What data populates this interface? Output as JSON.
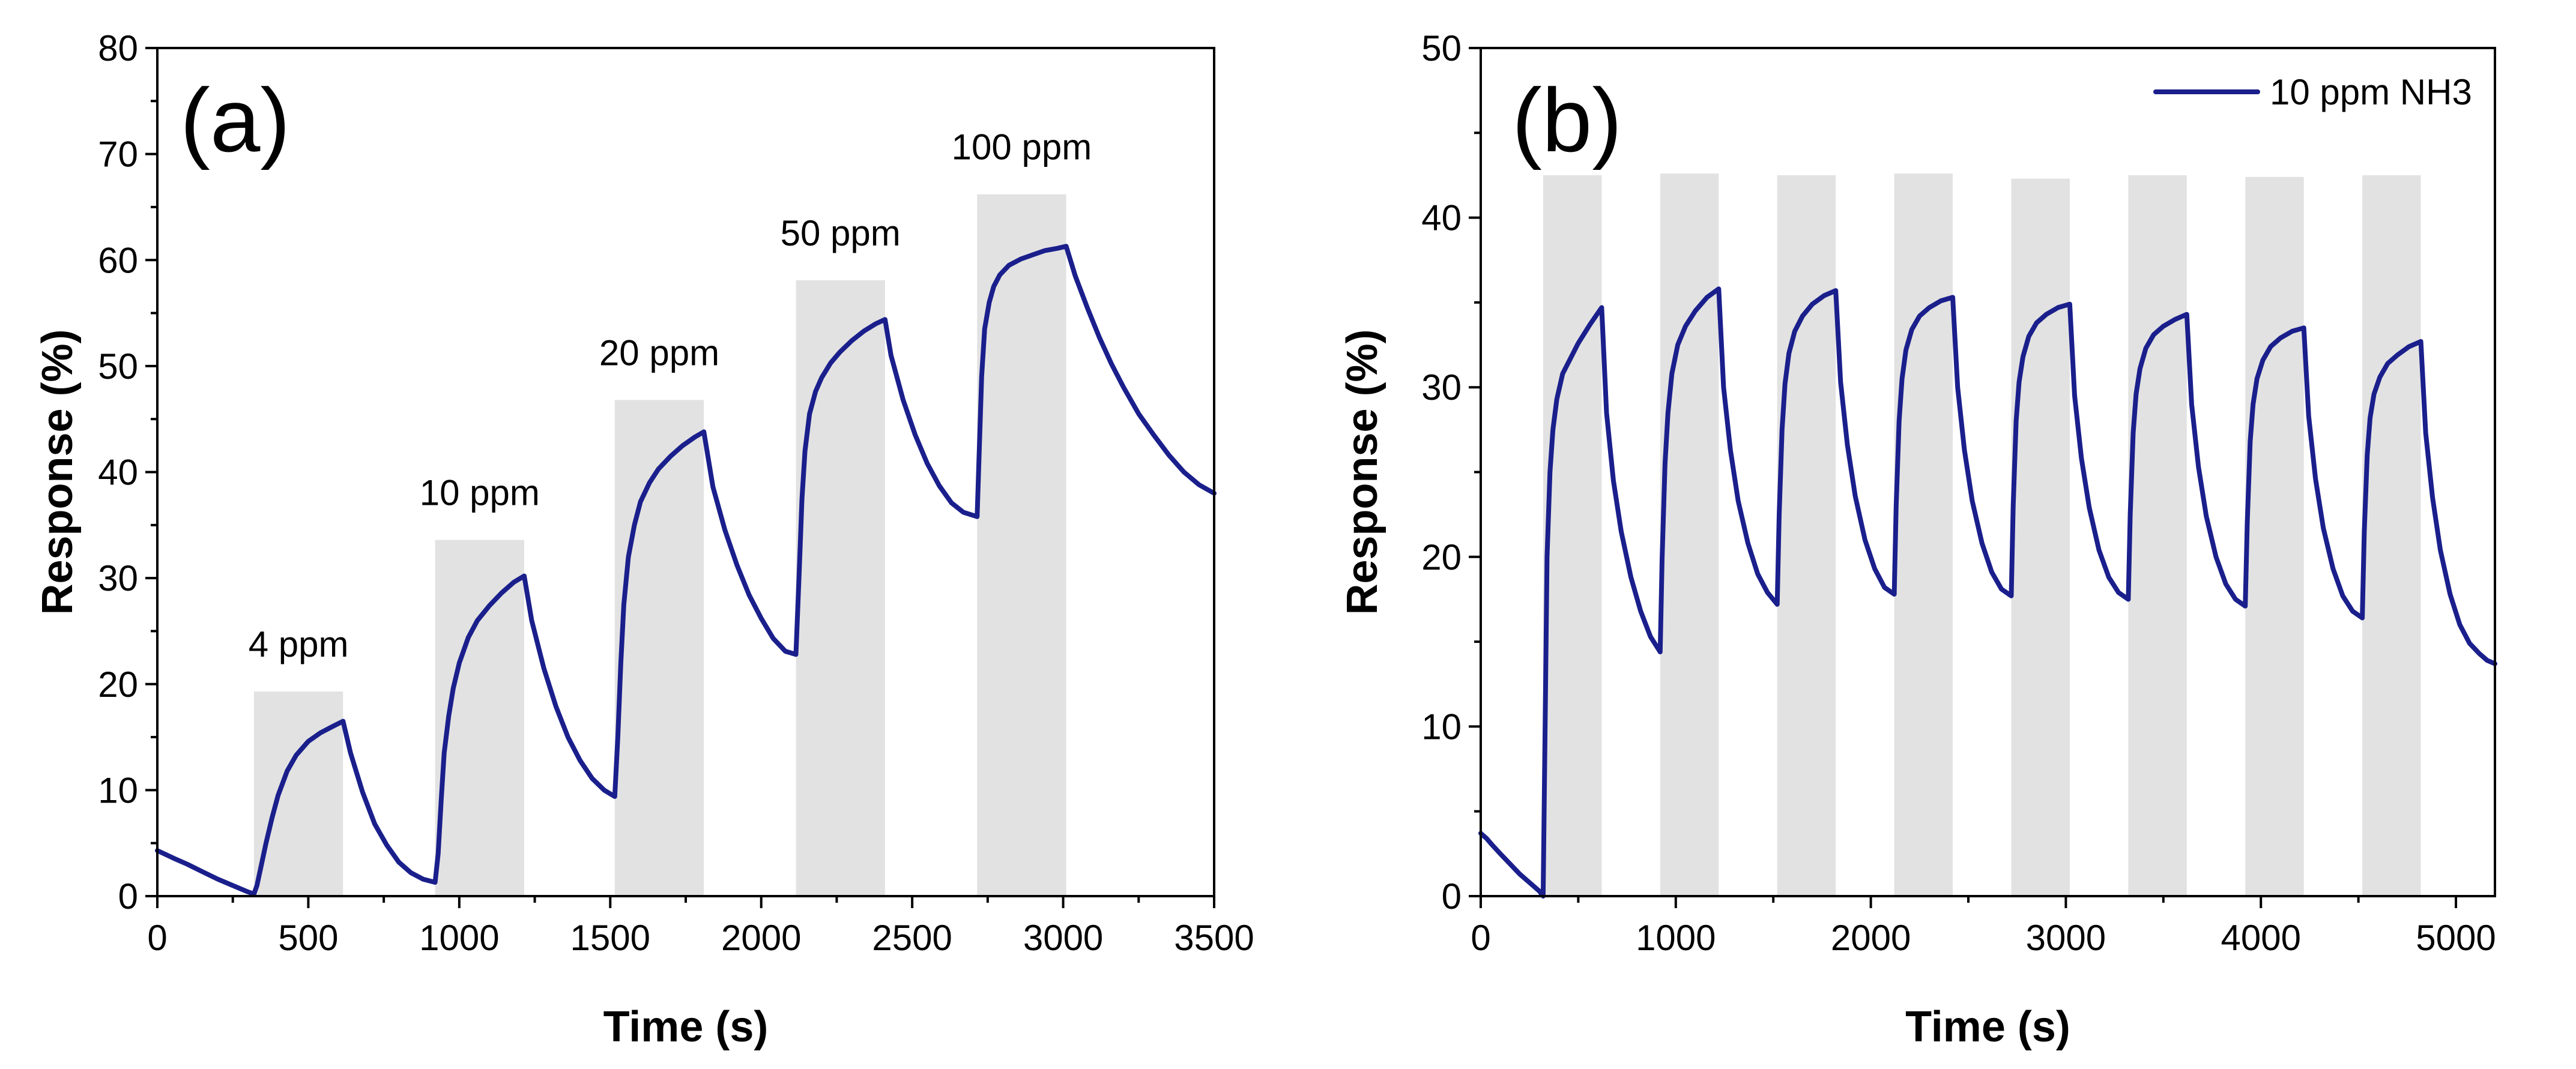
{
  "chart_data": [
    {
      "type": "line",
      "panel_label": "(a)",
      "xlabel": "Time (s)",
      "ylabel": "Response (%)",
      "xlim": [
        0,
        3500
      ],
      "ylim": [
        0,
        80
      ],
      "xticks": [
        0,
        500,
        1000,
        1500,
        2000,
        2500,
        3000,
        3500
      ],
      "yticks": [
        0,
        10,
        20,
        30,
        40,
        50,
        60,
        70,
        80
      ],
      "grid": false,
      "color": "#1a1f8c",
      "band_color": "#e2e2e2",
      "exposures": [
        {
          "label": "4 ppm",
          "start": 320,
          "end": 615,
          "height": 19.3
        },
        {
          "label": "10 ppm",
          "start": 920,
          "end": 1215,
          "height": 33.6
        },
        {
          "label": "20 ppm",
          "start": 1515,
          "end": 1810,
          "height": 46.8
        },
        {
          "label": "50 ppm",
          "start": 2115,
          "end": 2410,
          "height": 58.1
        },
        {
          "label": "100 ppm",
          "start": 2715,
          "end": 3010,
          "height": 66.2
        }
      ],
      "series": [
        {
          "name": "Response",
          "x": [
            0,
            30,
            60,
            100,
            150,
            200,
            250,
            300,
            320,
            330,
            345,
            360,
            380,
            400,
            430,
            460,
            500,
            540,
            580,
            615,
            640,
            680,
            720,
            760,
            800,
            840,
            880,
            920,
            930,
            940,
            950,
            965,
            980,
            1000,
            1030,
            1060,
            1100,
            1140,
            1180,
            1215,
            1240,
            1280,
            1320,
            1360,
            1400,
            1440,
            1480,
            1515,
            1525,
            1535,
            1545,
            1560,
            1580,
            1600,
            1630,
            1660,
            1700,
            1740,
            1780,
            1810,
            1840,
            1880,
            1920,
            1960,
            2000,
            2040,
            2080,
            2115,
            2125,
            2135,
            2145,
            2160,
            2180,
            2200,
            2230,
            2260,
            2300,
            2340,
            2380,
            2410,
            2430,
            2470,
            2510,
            2550,
            2590,
            2630,
            2670,
            2715,
            2722,
            2730,
            2740,
            2755,
            2770,
            2790,
            2820,
            2860,
            2900,
            2940,
            2980,
            3010,
            3040,
            3080,
            3120,
            3160,
            3200,
            3250,
            3300,
            3350,
            3400,
            3450,
            3500
          ],
          "y": [
            4.3,
            3.9,
            3.5,
            3.0,
            2.3,
            1.6,
            1.0,
            0.4,
            0.2,
            1.0,
            3.0,
            5.0,
            7.4,
            9.5,
            11.8,
            13.3,
            14.6,
            15.4,
            16.0,
            16.5,
            13.5,
            9.8,
            6.8,
            4.8,
            3.2,
            2.2,
            1.6,
            1.3,
            4.0,
            9.0,
            13.5,
            17.0,
            19.6,
            22.0,
            24.4,
            26.0,
            27.4,
            28.6,
            29.6,
            30.2,
            26.0,
            21.5,
            17.9,
            15.0,
            12.8,
            11.1,
            10.0,
            9.4,
            15.0,
            22.0,
            27.5,
            32.0,
            35.0,
            37.2,
            39.0,
            40.3,
            41.5,
            42.5,
            43.3,
            43.8,
            38.6,
            34.5,
            31.2,
            28.4,
            26.2,
            24.3,
            23.1,
            22.8,
            30.0,
            37.5,
            42.0,
            45.5,
            47.6,
            48.9,
            50.3,
            51.3,
            52.4,
            53.3,
            54.0,
            54.4,
            51.0,
            46.8,
            43.5,
            40.8,
            38.7,
            37.1,
            36.2,
            35.8,
            42.0,
            49.0,
            53.5,
            56.0,
            57.5,
            58.6,
            59.5,
            60.1,
            60.5,
            60.9,
            61.1,
            61.3,
            58.5,
            55.5,
            52.7,
            50.2,
            48.0,
            45.5,
            43.5,
            41.6,
            40.0,
            38.8,
            38.0
          ]
        }
      ]
    },
    {
      "type": "line",
      "panel_label": "(b)",
      "xlabel": "Time (s)",
      "ylabel": "Response (%)",
      "xlim": [
        0,
        5200
      ],
      "ylim": [
        0,
        50
      ],
      "xticks": [
        0,
        1000,
        2000,
        3000,
        4000,
        5000
      ],
      "yticks": [
        0,
        10,
        20,
        30,
        40,
        50
      ],
      "grid": false,
      "color": "#1a1f8c",
      "band_color": "#e2e2e2",
      "legend": {
        "label": "10 ppm NH3",
        "position": "top-right"
      },
      "exposures": [
        {
          "start": 320,
          "end": 620,
          "height": 42.5
        },
        {
          "start": 920,
          "end": 1220,
          "height": 42.6
        },
        {
          "start": 1520,
          "end": 1820,
          "height": 42.5
        },
        {
          "start": 2120,
          "end": 2420,
          "height": 42.6
        },
        {
          "start": 2720,
          "end": 3020,
          "height": 42.3
        },
        {
          "start": 3320,
          "end": 3620,
          "height": 42.5
        },
        {
          "start": 3920,
          "end": 4220,
          "height": 42.4
        },
        {
          "start": 4520,
          "end": 4820,
          "height": 42.5
        }
      ],
      "series": [
        {
          "name": "10 ppm NH3",
          "x": [
            0,
            30,
            60,
            100,
            150,
            200,
            250,
            300,
            320,
            330,
            340,
            355,
            370,
            390,
            420,
            460,
            500,
            560,
            620,
            645,
            680,
            720,
            770,
            820,
            870,
            920,
            930,
            945,
            960,
            980,
            1010,
            1050,
            1100,
            1160,
            1220,
            1245,
            1280,
            1320,
            1370,
            1420,
            1470,
            1520,
            1530,
            1545,
            1560,
            1580,
            1610,
            1650,
            1700,
            1760,
            1820,
            1845,
            1880,
            1920,
            1970,
            2020,
            2070,
            2120,
            2130,
            2145,
            2160,
            2180,
            2210,
            2250,
            2300,
            2360,
            2420,
            2445,
            2480,
            2520,
            2570,
            2620,
            2670,
            2720,
            2730,
            2745,
            2760,
            2780,
            2810,
            2850,
            2900,
            2960,
            3020,
            3045,
            3080,
            3120,
            3170,
            3220,
            3270,
            3320,
            3330,
            3345,
            3360,
            3380,
            3410,
            3450,
            3500,
            3560,
            3620,
            3645,
            3680,
            3720,
            3770,
            3820,
            3870,
            3920,
            3930,
            3945,
            3960,
            3980,
            4010,
            4050,
            4100,
            4160,
            4220,
            4245,
            4280,
            4320,
            4370,
            4420,
            4470,
            4520,
            4530,
            4545,
            4560,
            4580,
            4610,
            4650,
            4700,
            4760,
            4820,
            4845,
            4880,
            4920,
            4970,
            5020,
            5070,
            5120,
            5160,
            5200
          ],
          "y": [
            3.7,
            3.4,
            3.0,
            2.5,
            1.9,
            1.3,
            0.8,
            0.3,
            0.0,
            10.0,
            20.0,
            25.0,
            27.5,
            29.3,
            30.8,
            31.7,
            32.6,
            33.7,
            34.7,
            28.5,
            24.5,
            21.5,
            18.8,
            16.8,
            15.3,
            14.4,
            20.0,
            25.5,
            28.5,
            30.8,
            32.5,
            33.6,
            34.5,
            35.3,
            35.8,
            30.0,
            26.3,
            23.3,
            20.8,
            19.0,
            17.9,
            17.2,
            22.5,
            27.5,
            30.2,
            32.0,
            33.3,
            34.2,
            34.9,
            35.4,
            35.7,
            30.3,
            26.6,
            23.6,
            21.0,
            19.3,
            18.2,
            17.8,
            23.0,
            28.0,
            30.5,
            32.2,
            33.4,
            34.2,
            34.7,
            35.1,
            35.3,
            30.0,
            26.3,
            23.3,
            20.8,
            19.1,
            18.1,
            17.7,
            23.0,
            28.0,
            30.3,
            31.8,
            33.0,
            33.8,
            34.3,
            34.7,
            34.9,
            29.5,
            25.8,
            22.9,
            20.4,
            18.8,
            17.9,
            17.5,
            22.5,
            27.3,
            29.6,
            31.1,
            32.3,
            33.1,
            33.6,
            34.0,
            34.3,
            29.0,
            25.3,
            22.4,
            20.0,
            18.4,
            17.5,
            17.1,
            22.0,
            26.8,
            29.0,
            30.5,
            31.6,
            32.4,
            32.9,
            33.3,
            33.5,
            28.3,
            24.6,
            21.7,
            19.3,
            17.7,
            16.8,
            16.4,
            21.5,
            26.0,
            28.2,
            29.6,
            30.6,
            31.4,
            31.9,
            32.4,
            32.7,
            27.3,
            23.5,
            20.4,
            17.8,
            16.0,
            14.9,
            14.3,
            13.9,
            13.7
          ]
        }
      ]
    }
  ]
}
